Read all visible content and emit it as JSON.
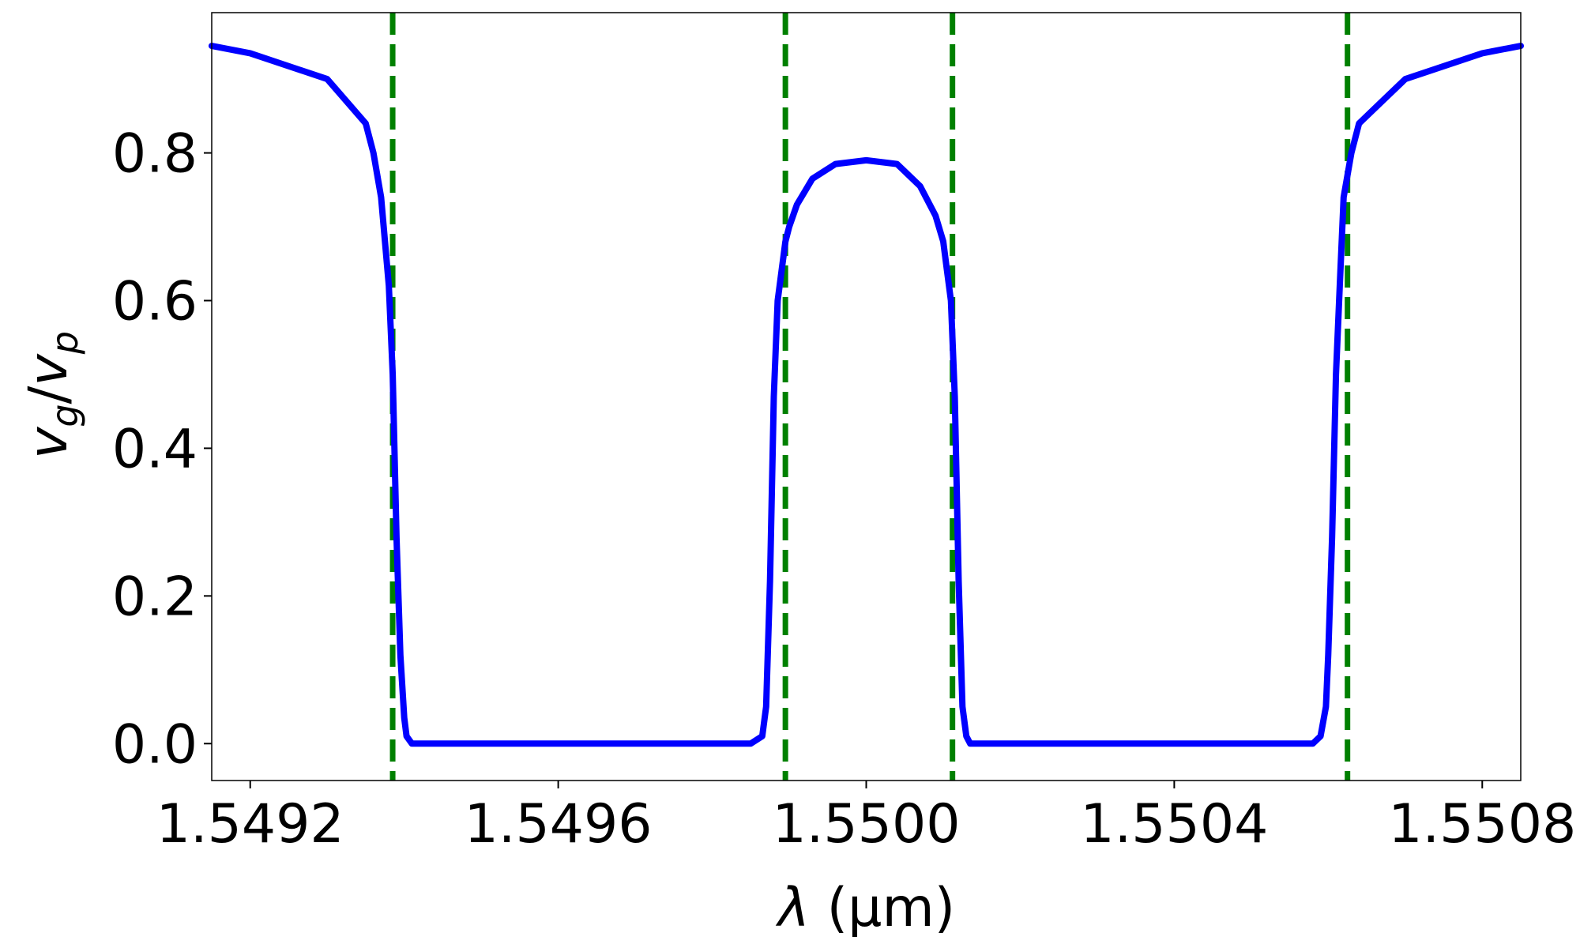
{
  "chart_data": {
    "type": "line",
    "xlabel": "λ (μm)",
    "ylabel": "v_g/v_p",
    "ylabel_parts": {
      "main": "v",
      "sub1": "g",
      "slash": "/",
      "main2": "v",
      "sub2": "p"
    },
    "xlim": [
      1.54915,
      1.55085
    ],
    "ylim": [
      -0.05,
      0.99
    ],
    "x_ticks": [
      1.5492,
      1.5496,
      1.55,
      1.5504,
      1.5508
    ],
    "x_tick_labels": [
      "1.5492",
      "1.5496",
      "1.5500",
      "1.5504",
      "1.5508"
    ],
    "y_ticks": [
      0.0,
      0.2,
      0.4,
      0.6,
      0.8
    ],
    "y_tick_labels": [
      "0.0",
      "0.2",
      "0.4",
      "0.6",
      "0.8"
    ],
    "grid": false,
    "series": [
      {
        "color": "#0000ff",
        "style": "solid",
        "x": [
          1.54915,
          1.5492,
          1.5493,
          1.5493,
          1.54935,
          1.54936,
          1.54937,
          1.54938,
          1.549385,
          1.54939,
          1.549395,
          1.5494,
          1.549403,
          1.54941,
          1.54942,
          1.54985,
          1.549865,
          1.54987,
          1.549875,
          1.54988,
          1.549885,
          1.54989,
          1.549895,
          1.5499,
          1.54991,
          1.54993,
          1.54996,
          1.55,
          1.55004,
          1.55007,
          1.55009,
          1.5501,
          1.550105,
          1.55011,
          1.550115,
          1.55012,
          1.550125,
          1.55013,
          1.550135,
          1.55015,
          1.55058,
          1.55059,
          1.550597,
          1.5506,
          1.550605,
          1.55061,
          1.550615,
          1.55062,
          1.55063,
          1.55064,
          1.5507,
          1.5508,
          1.55085
        ],
        "y": [
          0.945,
          0.935,
          0.9,
          0.9,
          0.84,
          0.8,
          0.74,
          0.62,
          0.5,
          0.28,
          0.12,
          0.035,
          0.01,
          0.0,
          0.0,
          0.0,
          0.01,
          0.05,
          0.22,
          0.47,
          0.6,
          0.64,
          0.68,
          0.7,
          0.73,
          0.765,
          0.785,
          0.79,
          0.785,
          0.755,
          0.715,
          0.68,
          0.64,
          0.6,
          0.47,
          0.22,
          0.05,
          0.01,
          0.0,
          0.0,
          0.0,
          0.01,
          0.05,
          0.12,
          0.28,
          0.5,
          0.62,
          0.74,
          0.8,
          0.84,
          0.9,
          0.935,
          0.945
        ]
      }
    ],
    "vlines": {
      "color": "#008000",
      "style": "dashed",
      "x": [
        1.549385,
        1.549895,
        1.550112,
        1.550625
      ]
    }
  }
}
